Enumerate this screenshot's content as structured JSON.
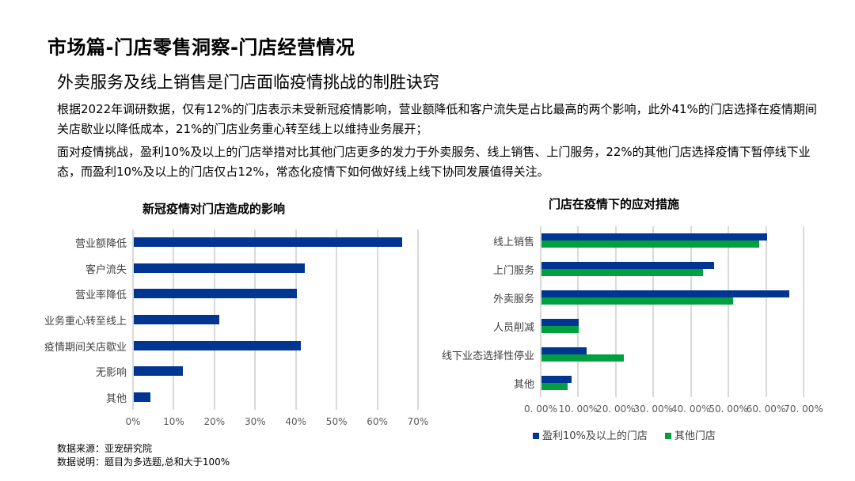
{
  "header": {
    "title": "市场篇-门店零售洞察-门店经营情况",
    "subtitle": "外卖服务及线上销售是门店面临疫情挑战的制胜诀窍"
  },
  "paragraphs": [
    "根据2022年调研数据，仅有12%的门店表示未受新冠疫情影响，营业额降低和客户流失是占比最高的两个影响，此外41%的门店选择在疫情期间关店歇业以降低成本，21%的门店业务重心转至线上以维持业务展开；",
    "面对疫情挑战，盈利10%及以上的门店举措对比其他门店更多的发力于外卖服务、线上销售、上门服务，22%的其他门店选择疫情下暂停线下业态，而盈利10%及以上的门店仅占12%，常态化疫情下如何做好线上线下协同发展值得关注。"
  ],
  "notes": [
    "数据来源：亚宠研究院",
    "数据说明：题目为多选题,总和大于100%"
  ],
  "chart_data": [
    {
      "type": "bar",
      "title": "新冠疫情对门店造成的影响",
      "categories": [
        "营业额降低",
        "客户流失",
        "营业率降低",
        "业务重心转至线上",
        "疫情期间关店歇业",
        "无影响",
        "其他"
      ],
      "values": [
        66,
        42,
        40,
        21,
        41,
        12,
        4
      ],
      "xlim": [
        0,
        70
      ],
      "ticks": [
        "0%",
        "10%",
        "20%",
        "30%",
        "40%",
        "50%",
        "60%",
        "70%"
      ],
      "color": "#003591"
    },
    {
      "type": "bar",
      "title": "门店在疫情下的应对措施",
      "categories": [
        "线上销售",
        "上门服务",
        "外卖服务",
        "人员削减",
        "线下业态选择性停业",
        "其他"
      ],
      "series": [
        {
          "name": "盈利10%及以上的门店",
          "values": [
            60,
            46,
            66,
            10,
            12,
            8
          ],
          "color": "#003591"
        },
        {
          "name": "其他门店",
          "values": [
            58,
            43,
            51,
            10,
            22,
            7
          ],
          "color": "#00a040"
        }
      ],
      "xlim": [
        0,
        70
      ],
      "ticks": [
        "0. 00%",
        "10. 00%",
        "20. 00%",
        "30. 00%",
        "40. 00%",
        "50. 00%",
        "60. 00%",
        "70. 00%"
      ],
      "legend": "bottom"
    }
  ]
}
